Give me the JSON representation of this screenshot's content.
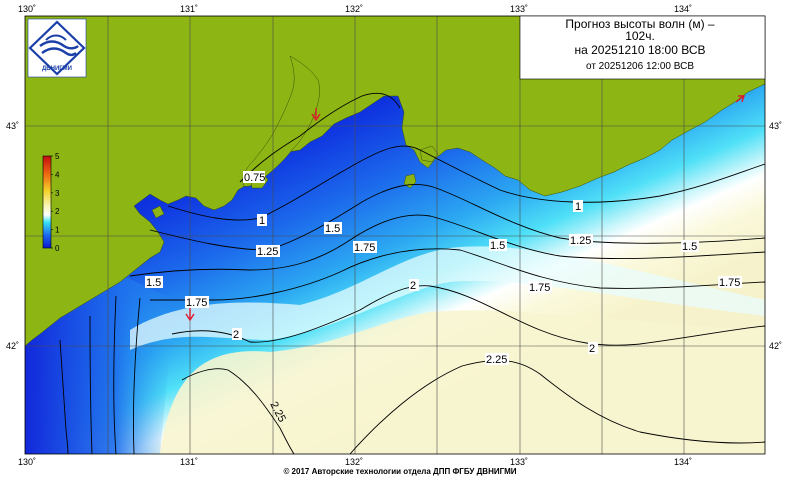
{
  "title": {
    "line1": "Прогноз высоты волн (м) –",
    "line2": "102ч.",
    "line3": "на 20251210 18:00 ВСВ",
    "line4": "от 20251206 12:00 ВСВ"
  },
  "logo": {
    "text": "ДВНИГМИ"
  },
  "axes": {
    "lon_labels": [
      "130˚",
      "131˚",
      "132˚",
      "133˚",
      "134˚"
    ],
    "lat_labels": [
      "43˚",
      "42˚"
    ]
  },
  "legend": {
    "ticks": [
      "5",
      "4",
      "3",
      "2",
      "1",
      "0"
    ],
    "range": [
      0,
      5
    ]
  },
  "contour_labels": [
    "0.75",
    "1",
    "1.25",
    "1.5",
    "1.75",
    "2",
    "2.25",
    "1.5",
    "1.75",
    "1",
    "1.25",
    "1.5",
    "1.75",
    "2.25"
  ],
  "footer": {
    "credit": "© 2017 Авторские технологии отдела ДПП ФГБУ ДВНИГМИ"
  },
  "colors": {
    "land": "#8db514",
    "deep_blue": "#0d1fd6",
    "mid_blue": "#1e78ee",
    "cyan": "#39e3f6",
    "white_band": "#ffffff",
    "cream": "#f8f6d2",
    "arrow": "#e0182c"
  }
}
